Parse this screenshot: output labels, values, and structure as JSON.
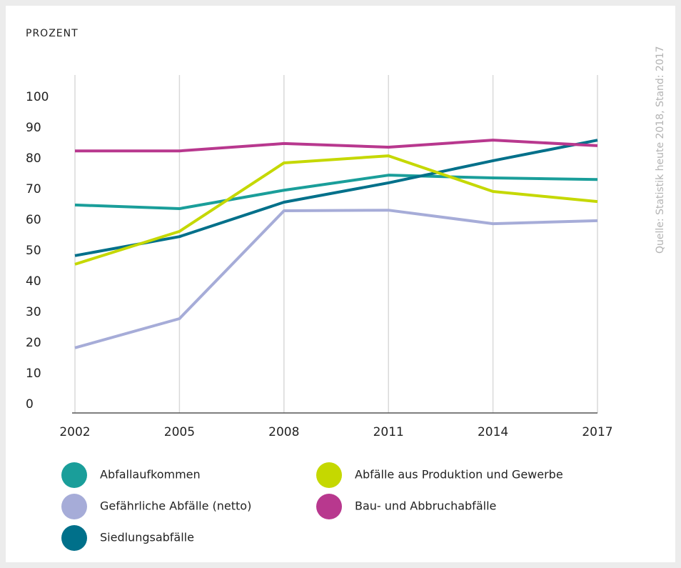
{
  "chart_data": {
    "type": "line",
    "y_label": "PROZENT",
    "source": "Quelle: Statistik heute 2018, Stand: 2017",
    "x": [
      2002,
      2005,
      2008,
      2011,
      2014,
      2017
    ],
    "xlim": [
      2002,
      2017
    ],
    "ylim": [
      0,
      110
    ],
    "yticks": [
      0,
      10,
      20,
      30,
      40,
      50,
      60,
      70,
      80,
      90,
      100
    ],
    "series": [
      {
        "name": "Abfallaufkommen",
        "color": "#1a9e9a",
        "values": [
          67.7,
          66.5,
          72.5,
          77.4,
          76.5,
          76
        ]
      },
      {
        "name": "Gefährliche Abfälle (netto)",
        "color": "#a6acd8",
        "values": [
          21.2,
          30.7,
          65.8,
          66,
          61.6,
          62.6
        ]
      },
      {
        "name": "Siedlungsabfälle",
        "color": "#00708a",
        "values": [
          51.2,
          57.4,
          68.6,
          74.9,
          82.1,
          88.8
        ]
      },
      {
        "name": "Abfälle aus Produktion und Gewerbe",
        "color": "#c5d800",
        "values": [
          48.4,
          59.1,
          81.4,
          83.7,
          72.1,
          68.8
        ]
      },
      {
        "name": "Bau- und Abbruchabfälle",
        "color": "#b8388e",
        "values": [
          85.3,
          85.3,
          87.7,
          86.5,
          88.8,
          87
        ]
      }
    ]
  }
}
